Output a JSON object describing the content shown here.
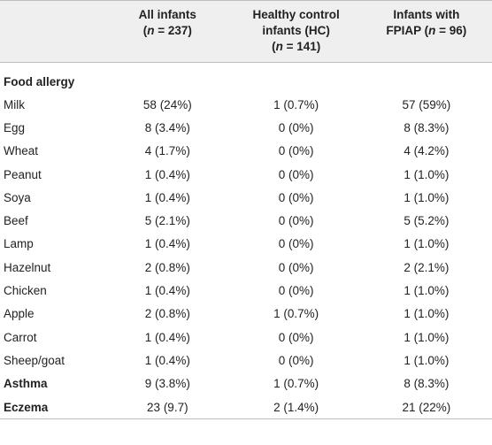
{
  "header": {
    "col1_line1": "All infants",
    "col1_line2_n": "n",
    "col1_line2_rest": " = 237)",
    "col2_line1": "Healthy control",
    "col2_line2": "infants (HC)",
    "col2_line3_n": "n",
    "col2_line3_rest": " = 141)",
    "col3_line1": "Infants with",
    "col3_line2_a": "FPIAP (",
    "col3_line2_n": "n",
    "col3_line2_rest": " = 96)"
  },
  "section_label": "Food allergy",
  "rows": [
    {
      "label": "Milk",
      "all": "58 (24%)",
      "hc": "1 (0.7%)",
      "fpiap": "57 (59%)"
    },
    {
      "label": "Egg",
      "all": "8 (3.4%)",
      "hc": "0 (0%)",
      "fpiap": "8 (8.3%)"
    },
    {
      "label": "Wheat",
      "all": "4 (1.7%)",
      "hc": "0 (0%)",
      "fpiap": "4 (4.2%)"
    },
    {
      "label": "Peanut",
      "all": "1 (0.4%)",
      "hc": "0 (0%)",
      "fpiap": "1 (1.0%)"
    },
    {
      "label": "Soya",
      "all": "1 (0.4%)",
      "hc": "0 (0%)",
      "fpiap": "1 (1.0%)"
    },
    {
      "label": "Beef",
      "all": "5 (2.1%)",
      "hc": "0 (0%)",
      "fpiap": "5 (5.2%)"
    },
    {
      "label": "Lamp",
      "all": "1 (0.4%)",
      "hc": "0 (0%)",
      "fpiap": "1 (1.0%)"
    },
    {
      "label": "Hazelnut",
      "all": "2 (0.8%)",
      "hc": "0 (0%)",
      "fpiap": "2 (2.1%)"
    },
    {
      "label": "Chicken",
      "all": "1 (0.4%)",
      "hc": "0 (0%)",
      "fpiap": "1 (1.0%)"
    },
    {
      "label": "Apple",
      "all": "2 (0.8%)",
      "hc": "1 (0.7%)",
      "fpiap": "1 (1.0%)"
    },
    {
      "label": "Carrot",
      "all": "1 (0.4%)",
      "hc": "0 (0%)",
      "fpiap": "1 (1.0%)"
    },
    {
      "label": "Sheep/goat",
      "all": "1 (0.4%)",
      "hc": "0 (0%)",
      "fpiap": "1 (1.0%)"
    }
  ],
  "bold_rows": [
    {
      "label": "Asthma",
      "all": "9 (3.8%)",
      "hc": "1 (0.7%)",
      "fpiap": "8 (8.3%)"
    },
    {
      "label": "Eczema",
      "all": "23 (9.7)",
      "hc": "2 (1.4%)",
      "fpiap": "21 (22%)"
    }
  ]
}
